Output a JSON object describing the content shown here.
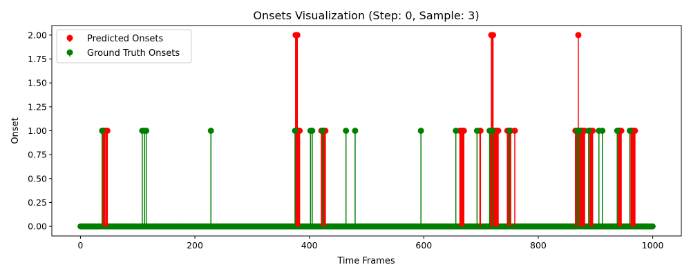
{
  "chart_data": {
    "type": "stem",
    "title": "Onsets Visualization (Step: 0, Sample: 3)",
    "xlabel": "Time Frames",
    "ylabel": "Onset",
    "xlim": [
      -50,
      1050
    ],
    "ylim": [
      -0.1,
      2.1
    ],
    "x_ticks": [
      0,
      200,
      400,
      600,
      800,
      1000
    ],
    "x_tick_labels": [
      "0",
      "200",
      "400",
      "600",
      "800",
      "1000"
    ],
    "y_ticks": [
      0.0,
      0.25,
      0.5,
      0.75,
      1.0,
      1.25,
      1.5,
      1.75,
      2.0
    ],
    "y_tick_labels": [
      "0.00",
      "0.25",
      "0.50",
      "0.75",
      "1.00",
      "1.25",
      "1.50",
      "1.75",
      "2.00"
    ],
    "grid": false,
    "legend_position": "top-left",
    "n_frames": 1001,
    "baseline_value": 0,
    "series": [
      {
        "name": "Predicted Onsets",
        "color": "#ff0000",
        "points": [
          [
            38,
            1
          ],
          [
            39,
            1
          ],
          [
            40,
            1
          ],
          [
            41,
            1
          ],
          [
            42,
            1
          ],
          [
            43,
            1
          ],
          [
            45,
            1
          ],
          [
            46,
            1
          ],
          [
            47,
            1
          ],
          [
            376,
            2
          ],
          [
            377,
            2
          ],
          [
            378,
            2
          ],
          [
            379,
            2
          ],
          [
            380,
            1
          ],
          [
            381,
            1
          ],
          [
            382,
            1
          ],
          [
            383,
            1
          ],
          [
            421,
            1
          ],
          [
            422,
            1
          ],
          [
            424,
            1
          ],
          [
            425,
            1
          ],
          [
            426,
            1
          ],
          [
            427,
            1
          ],
          [
            428,
            1
          ],
          [
            663,
            1
          ],
          [
            664,
            1
          ],
          [
            665,
            1
          ],
          [
            666,
            1
          ],
          [
            667,
            1
          ],
          [
            668,
            1
          ],
          [
            669,
            1
          ],
          [
            670,
            1
          ],
          [
            698,
            1
          ],
          [
            699,
            1
          ],
          [
            716,
            1
          ],
          [
            717,
            1
          ],
          [
            718,
            2
          ],
          [
            719,
            2
          ],
          [
            720,
            2
          ],
          [
            721,
            2
          ],
          [
            722,
            1
          ],
          [
            723,
            1
          ],
          [
            724,
            1
          ],
          [
            725,
            1
          ],
          [
            726,
            1
          ],
          [
            727,
            1
          ],
          [
            728,
            1
          ],
          [
            729,
            1
          ],
          [
            730,
            1
          ],
          [
            746,
            1
          ],
          [
            747,
            1
          ],
          [
            748,
            1
          ],
          [
            749,
            1
          ],
          [
            750,
            1
          ],
          [
            751,
            1
          ],
          [
            752,
            1
          ],
          [
            759,
            1
          ],
          [
            865,
            1
          ],
          [
            866,
            1
          ],
          [
            867,
            1
          ],
          [
            868,
            1
          ],
          [
            869,
            1
          ],
          [
            870,
            2
          ],
          [
            871,
            1
          ],
          [
            872,
            1
          ],
          [
            873,
            1
          ],
          [
            874,
            1
          ],
          [
            875,
            1
          ],
          [
            876,
            1
          ],
          [
            877,
            1
          ],
          [
            878,
            1
          ],
          [
            879,
            1
          ],
          [
            880,
            1
          ],
          [
            881,
            1
          ],
          [
            890,
            1
          ],
          [
            891,
            1
          ],
          [
            892,
            1
          ],
          [
            893,
            1
          ],
          [
            894,
            1
          ],
          [
            895,
            1
          ],
          [
            940,
            1
          ],
          [
            941,
            1
          ],
          [
            942,
            1
          ],
          [
            943,
            1
          ],
          [
            944,
            1
          ],
          [
            945,
            1
          ],
          [
            962,
            1
          ],
          [
            963,
            1
          ],
          [
            964,
            1
          ],
          [
            965,
            1
          ],
          [
            966,
            1
          ],
          [
            967,
            1
          ],
          [
            968,
            1
          ],
          [
            969,
            1
          ]
        ]
      },
      {
        "name": "Ground Truth Onsets",
        "color": "#008000",
        "points": [
          [
            38,
            1
          ],
          [
            108,
            1
          ],
          [
            112,
            1
          ],
          [
            115,
            1
          ],
          [
            228,
            1
          ],
          [
            375,
            1
          ],
          [
            402,
            1
          ],
          [
            405,
            1
          ],
          [
            423,
            1
          ],
          [
            464,
            1
          ],
          [
            480,
            1
          ],
          [
            595,
            1
          ],
          [
            656,
            1
          ],
          [
            693,
            1
          ],
          [
            715,
            1
          ],
          [
            720,
            1
          ],
          [
            750,
            1
          ],
          [
            868,
            1
          ],
          [
            872,
            1
          ],
          [
            888,
            1
          ],
          [
            906,
            1
          ],
          [
            912,
            1
          ],
          [
            938,
            1
          ],
          [
            960,
            1
          ]
        ]
      }
    ]
  }
}
